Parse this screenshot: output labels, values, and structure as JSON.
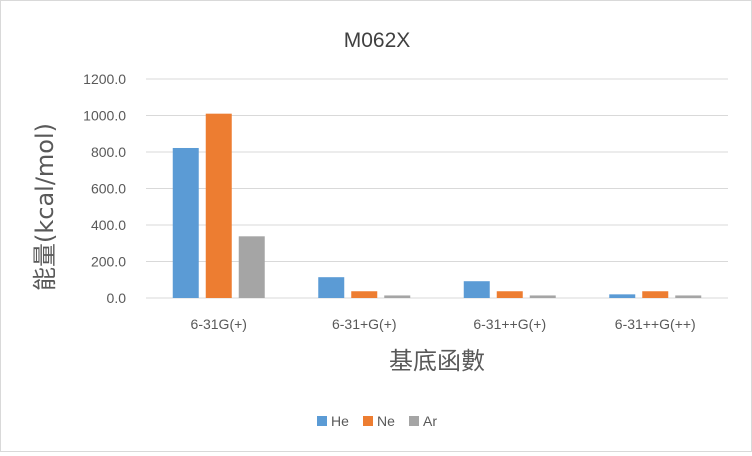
{
  "chart_data": {
    "type": "bar",
    "title": "M062X",
    "xlabel": "基底函數",
    "ylabel": "能量(kcal/mol)",
    "categories": [
      "6-31G(+)",
      "6-31+G(+)",
      "6-31++G(+)",
      "6-31++G(++)"
    ],
    "series": [
      {
        "name": "He",
        "color": "#5b9bd5",
        "values": [
          822,
          114,
          92,
          20
        ]
      },
      {
        "name": "Ne",
        "color": "#ed7d31",
        "values": [
          1010,
          37,
          37,
          37
        ]
      },
      {
        "name": "Ar",
        "color": "#a5a5a5",
        "values": [
          338,
          14,
          14,
          14
        ]
      }
    ],
    "ylim": [
      0,
      1200
    ],
    "yticks": [
      "0.0",
      "200.0",
      "400.0",
      "600.0",
      "800.0",
      "1000.0",
      "1200.0"
    ],
    "grid": true,
    "legend_position": "bottom"
  }
}
